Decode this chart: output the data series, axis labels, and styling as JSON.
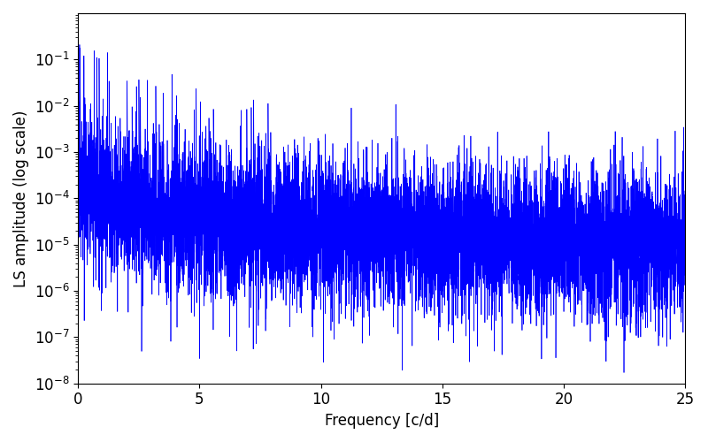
{
  "xlabel": "Frequency [c/d]",
  "ylabel": "LS amplitude (log scale)",
  "xlim": [
    0,
    25
  ],
  "ylim": [
    1e-08,
    1
  ],
  "line_color": "#0000ff",
  "line_width": 0.5,
  "background_color": "#ffffff",
  "seed": 12345,
  "n_points": 8000,
  "freq_max": 25.0,
  "tick_labelsize": 12,
  "label_fontsize": 12
}
